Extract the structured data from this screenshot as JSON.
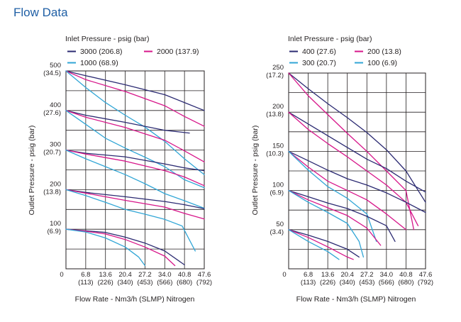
{
  "page": {
    "title": "Flow Data"
  },
  "colors": {
    "navy": "#2b2a72",
    "magenta": "#d7168a",
    "cyan": "#31a6d6",
    "grid": "#231f20"
  },
  "chart_data": [
    {
      "type": "line",
      "legend_title": "Inlet Pressure - psig (bar)",
      "xlabel": "Flow Rate - Nm3/h (SLMP) Nitrogen",
      "ylabel": "Outlet Pressure - psig (bar)",
      "xlim": [
        0,
        47.6
      ],
      "ylim": [
        0,
        500
      ],
      "grid": true,
      "legend_position": "top",
      "x_ticks": [
        {
          "value": 0,
          "label": "0",
          "sub": ""
        },
        {
          "value": 6.8,
          "label": "6.8",
          "sub": "(113)"
        },
        {
          "value": 13.6,
          "label": "13.6",
          "sub": "(226)"
        },
        {
          "value": 20.4,
          "label": "20.4",
          "sub": "(340)"
        },
        {
          "value": 27.2,
          "label": "27.2",
          "sub": "(453)"
        },
        {
          "value": 34.0,
          "label": "34.0",
          "sub": "(566)"
        },
        {
          "value": 40.8,
          "label": "40.8",
          "sub": "(680)"
        },
        {
          "value": 47.6,
          "label": "47.6",
          "sub": "(792)"
        }
      ],
      "y_ticks": [
        {
          "value": 100,
          "label": "100",
          "sub": "(6.9)"
        },
        {
          "value": 200,
          "label": "200",
          "sub": "(13.8)"
        },
        {
          "value": 300,
          "label": "300",
          "sub": "(20.7)"
        },
        {
          "value": 400,
          "label": "400",
          "sub": "(27.6)"
        },
        {
          "value": 500,
          "label": "500",
          "sub": "(34.5)"
        }
      ],
      "legend": [
        {
          "name": "3000 (206.8)",
          "color": "navy"
        },
        {
          "name": "2000 (137.9)",
          "color": "magenta"
        },
        {
          "name": "1000 (68.9)",
          "color": "cyan"
        }
      ],
      "series": [
        {
          "name": "3000 (206.8)",
          "color": "navy",
          "points": [
            [
              0,
              500
            ],
            [
              6.8,
              488
            ],
            [
              20.4,
              465
            ],
            [
              34,
              440
            ],
            [
              40.8,
              420
            ],
            [
              47.6,
              400
            ]
          ]
        },
        {
          "name": "2000 (137.9)",
          "color": "magenta",
          "points": [
            [
              0,
              500
            ],
            [
              6.8,
              478
            ],
            [
              20.4,
              448
            ],
            [
              34,
              412
            ],
            [
              40.8,
              385
            ],
            [
              47.6,
              360
            ]
          ]
        },
        {
          "name": "1000 (68.9)",
          "color": "cyan",
          "points": [
            [
              0,
              500
            ],
            [
              6.8,
              458
            ],
            [
              13.6,
              420
            ],
            [
              20.4,
              388
            ],
            [
              27.2,
              358
            ],
            [
              34,
              322
            ],
            [
              40.8,
              278
            ],
            [
              47.6,
              238
            ]
          ]
        },
        {
          "name": "3000 (206.8)",
          "color": "navy",
          "points": [
            [
              0,
              400
            ],
            [
              6.8,
              388
            ],
            [
              20.4,
              370
            ],
            [
              34,
              350
            ],
            [
              42.5,
              343
            ]
          ]
        },
        {
          "name": "2000 (137.9)",
          "color": "magenta",
          "points": [
            [
              0,
              400
            ],
            [
              6.8,
              383
            ],
            [
              20.4,
              357
            ],
            [
              34,
              325
            ],
            [
              40.8,
              298
            ],
            [
              47.6,
              270
            ]
          ]
        },
        {
          "name": "1000 (68.9)",
          "color": "cyan",
          "points": [
            [
              0,
              400
            ],
            [
              6.8,
              365
            ],
            [
              13.6,
              330
            ],
            [
              20.4,
              305
            ],
            [
              27.2,
              282
            ],
            [
              34,
              258
            ],
            [
              40.8,
              225
            ],
            [
              47.6,
              205
            ]
          ]
        },
        {
          "name": "3000 (206.8)",
          "color": "navy",
          "points": [
            [
              0,
              300
            ],
            [
              6.8,
              292
            ],
            [
              20.4,
              283
            ],
            [
              34,
              265
            ],
            [
              40.8,
              255
            ],
            [
              47.6,
              248
            ]
          ]
        },
        {
          "name": "2000 (137.9)",
          "color": "magenta",
          "points": [
            [
              0,
              300
            ],
            [
              6.8,
              290
            ],
            [
              20.4,
              272
            ],
            [
              34,
              248
            ],
            [
              40.8,
              232
            ],
            [
              47.6,
              210
            ]
          ]
        },
        {
          "name": "1000 (68.9)",
          "color": "cyan",
          "points": [
            [
              0,
              300
            ],
            [
              6.8,
              278
            ],
            [
              13.6,
              258
            ],
            [
              20.4,
              238
            ],
            [
              27.2,
              215
            ],
            [
              34,
              190
            ],
            [
              40.8,
              172
            ],
            [
              47.6,
              153
            ]
          ]
        },
        {
          "name": "3000 (206.8)",
          "color": "navy",
          "points": [
            [
              0,
              200
            ],
            [
              6.8,
              193
            ],
            [
              20.4,
              182
            ],
            [
              34,
              170
            ],
            [
              40.8,
              162
            ],
            [
              47.6,
              152
            ]
          ]
        },
        {
          "name": "2000 (137.9)",
          "color": "magenta",
          "points": [
            [
              0,
              200
            ],
            [
              6.8,
              191
            ],
            [
              20.4,
              173
            ],
            [
              34,
              156
            ],
            [
              40.8,
              140
            ],
            [
              47.6,
              126
            ]
          ]
        },
        {
          "name": "1000 (68.9)",
          "color": "cyan",
          "points": [
            [
              0,
              200
            ],
            [
              6.8,
              185
            ],
            [
              13.6,
              168
            ],
            [
              20.4,
              150
            ],
            [
              27.2,
              138
            ],
            [
              34,
              125
            ],
            [
              40,
              108
            ],
            [
              44.5,
              45
            ]
          ]
        },
        {
          "name": "3000 (206.8)",
          "color": "navy",
          "points": [
            [
              0,
              100
            ],
            [
              6.8,
              96
            ],
            [
              13.6,
              92
            ],
            [
              20.4,
              80
            ],
            [
              27.2,
              65
            ],
            [
              34,
              45
            ],
            [
              40.8,
              10
            ]
          ]
        },
        {
          "name": "2000 (137.9)",
          "color": "magenta",
          "points": [
            [
              0,
              100
            ],
            [
              6.8,
              95
            ],
            [
              13.6,
              88
            ],
            [
              20.4,
              74
            ],
            [
              27.2,
              55
            ],
            [
              34,
              32
            ],
            [
              37.5,
              8
            ]
          ]
        },
        {
          "name": "1000 (68.9)",
          "color": "cyan",
          "points": [
            [
              0,
              100
            ],
            [
              6.8,
              93
            ],
            [
              13.6,
              78
            ],
            [
              20.4,
              55
            ],
            [
              25,
              30
            ],
            [
              27.2,
              8
            ]
          ]
        }
      ]
    },
    {
      "type": "line",
      "legend_title": "Inlet Pressure - psig (bar)",
      "xlabel": "Flow Rate - Nm3/h (SLMP) Nitrogen",
      "ylabel": "Outlet Pressure - psig (bar)",
      "xlim": [
        0,
        47.6
      ],
      "ylim": [
        0,
        250
      ],
      "grid": true,
      "legend_position": "top",
      "x_ticks": [
        {
          "value": 0,
          "label": "0",
          "sub": ""
        },
        {
          "value": 6.8,
          "label": "6.8",
          "sub": "(113)"
        },
        {
          "value": 13.6,
          "label": "13.6",
          "sub": "(226)"
        },
        {
          "value": 20.4,
          "label": "20.4",
          "sub": "(340)"
        },
        {
          "value": 27.2,
          "label": "27.2",
          "sub": "(453)"
        },
        {
          "value": 34.0,
          "label": "34.0",
          "sub": "(566)"
        },
        {
          "value": 40.8,
          "label": "40.8",
          "sub": "(680)"
        },
        {
          "value": 47.6,
          "label": "47.6",
          "sub": "(792)"
        }
      ],
      "y_ticks": [
        {
          "value": 50,
          "label": "50",
          "sub": "(3.4)"
        },
        {
          "value": 100,
          "label": "100",
          "sub": "(6.9)"
        },
        {
          "value": 150,
          "label": "150",
          "sub": "(10.3)"
        },
        {
          "value": 200,
          "label": "200",
          "sub": "(13.8)"
        },
        {
          "value": 250,
          "label": "250",
          "sub": "(17.2)"
        }
      ],
      "legend": [
        {
          "name": "400 (27.6)",
          "color": "navy"
        },
        {
          "name": "200 (13.8)",
          "color": "magenta"
        },
        {
          "name": "300 (20.7)",
          "color": "cyan"
        },
        {
          "name": "100 (6.9)",
          "color": "cyan"
        }
      ],
      "series": [
        {
          "name": "400 (27.6)",
          "color": "navy",
          "points": [
            [
              0,
              250
            ],
            [
              6.8,
              230
            ],
            [
              13.6,
              211
            ],
            [
              20.4,
              193
            ],
            [
              27.2,
              174
            ],
            [
              34,
              152
            ],
            [
              40.8,
              125
            ],
            [
              47.6,
              85
            ]
          ]
        },
        {
          "name": "200 (13.8)",
          "color": "magenta",
          "points": [
            [
              0,
              250
            ],
            [
              6.8,
              221
            ],
            [
              13.6,
              197
            ],
            [
              20.4,
              173
            ],
            [
              27.2,
              150
            ],
            [
              34,
              125
            ],
            [
              40.8,
              100
            ],
            [
              43.5,
              50
            ]
          ]
        },
        {
          "name": "400 (27.6)",
          "color": "navy",
          "points": [
            [
              0,
              200
            ],
            [
              6.8,
              185
            ],
            [
              13.6,
              170
            ],
            [
              20.4,
              155
            ],
            [
              27.2,
              140
            ],
            [
              34,
              128
            ],
            [
              40.8,
              112
            ],
            [
              47.6,
              98
            ]
          ]
        },
        {
          "name": "200 (13.8)",
          "color": "magenta",
          "points": [
            [
              0,
              200
            ],
            [
              6.8,
              178
            ],
            [
              13.6,
              160
            ],
            [
              20.4,
              143
            ],
            [
              27.2,
              125
            ],
            [
              34,
              107
            ],
            [
              40.8,
              85
            ],
            [
              45,
              55
            ]
          ]
        },
        {
          "name": "400 (27.6)",
          "color": "navy",
          "points": [
            [
              0,
              150
            ],
            [
              6.8,
              138
            ],
            [
              13.6,
              126
            ],
            [
              20.4,
              115
            ],
            [
              27.2,
              107
            ],
            [
              34,
              97
            ],
            [
              40.8,
              85
            ],
            [
              47.6,
              72
            ]
          ]
        },
        {
          "name": "200 (13.8)",
          "color": "magenta",
          "points": [
            [
              0,
              150
            ],
            [
              6.8,
              130
            ],
            [
              13.6,
              112
            ],
            [
              20.4,
              100
            ],
            [
              27.2,
              88
            ],
            [
              34,
              70
            ],
            [
              40.8,
              50
            ]
          ]
        },
        {
          "name": "300 (20.7)",
          "color": "cyan",
          "points": [
            [
              0,
              150
            ],
            [
              6.8,
              126
            ],
            [
              13.6,
              105
            ],
            [
              20.4,
              90
            ],
            [
              27.2,
              70
            ],
            [
              30.5,
              35
            ]
          ]
        },
        {
          "name": "400 (27.6)",
          "color": "navy",
          "points": [
            [
              0,
              100
            ],
            [
              6.8,
              92
            ],
            [
              13.6,
              84
            ],
            [
              20.4,
              77
            ],
            [
              27.2,
              67
            ],
            [
              34,
              55
            ],
            [
              37,
              35
            ]
          ]
        },
        {
          "name": "200 (13.8)",
          "color": "magenta",
          "points": [
            [
              0,
              100
            ],
            [
              6.8,
              88
            ],
            [
              13.6,
              78
            ],
            [
              20.4,
              68
            ],
            [
              27.2,
              52
            ],
            [
              32,
              30
            ]
          ]
        },
        {
          "name": "300 (20.7)",
          "color": "cyan",
          "points": [
            [
              0,
              100
            ],
            [
              6.8,
              85
            ],
            [
              13.6,
              72
            ],
            [
              20.4,
              58
            ],
            [
              24.5,
              35
            ],
            [
              26,
              15
            ]
          ]
        },
        {
          "name": "400 (27.6)",
          "color": "navy",
          "points": [
            [
              0,
              50
            ],
            [
              6.8,
              43
            ],
            [
              13.6,
              35
            ],
            [
              20.4,
              25
            ],
            [
              24.5,
              15
            ]
          ]
        },
        {
          "name": "200 (13.8)",
          "color": "magenta",
          "points": [
            [
              0,
              50
            ],
            [
              6.8,
              40
            ],
            [
              13.6,
              28
            ],
            [
              20.4,
              15
            ],
            [
              22.5,
              12
            ]
          ]
        },
        {
          "name": "100 (6.9)",
          "color": "cyan",
          "points": [
            [
              0,
              50
            ],
            [
              6.8,
              35
            ],
            [
              13.6,
              22
            ],
            [
              17.5,
              12
            ]
          ]
        }
      ]
    }
  ]
}
